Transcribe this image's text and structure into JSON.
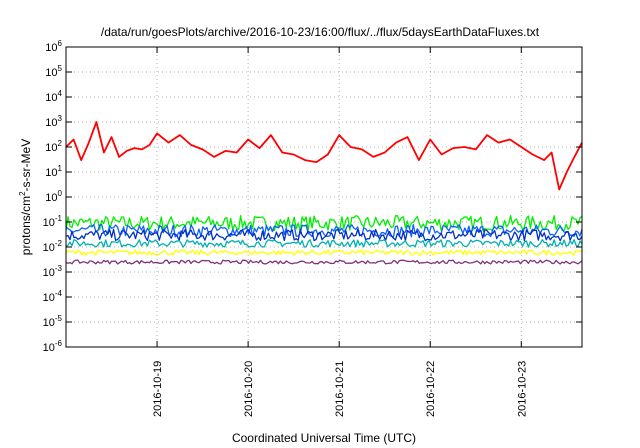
{
  "chart_data": {
    "type": "line",
    "title": "/data/run/goesPlots/archive/2016-10-23/16:00/flux/../flux/5daysEarthDataFluxes.txt",
    "xlabel": "Coordinated Universal Time (UTC)",
    "ylabel": {
      "prefix": "protons/cm",
      "sup": "2",
      "suffix": "-s-sr-MeV"
    },
    "yscale": "log",
    "ylim": [
      1e-06,
      1000000.0
    ],
    "yticks": [
      {
        "base": "10",
        "exp": "-6",
        "value": 1e-06
      },
      {
        "base": "10",
        "exp": "-5",
        "value": 1e-05
      },
      {
        "base": "10",
        "exp": "-4",
        "value": 0.0001
      },
      {
        "base": "10",
        "exp": "-3",
        "value": 0.001
      },
      {
        "base": "10",
        "exp": "-2",
        "value": 0.01
      },
      {
        "base": "10",
        "exp": "-1",
        "value": 0.1
      },
      {
        "base": "10",
        "exp": "0",
        "value": 1
      },
      {
        "base": "10",
        "exp": "1",
        "value": 10
      },
      {
        "base": "10",
        "exp": "2",
        "value": 100
      },
      {
        "base": "10",
        "exp": "3",
        "value": 1000
      },
      {
        "base": "10",
        "exp": "4",
        "value": 10000
      },
      {
        "base": "10",
        "exp": "5",
        "value": 100000
      },
      {
        "base": "10",
        "exp": "6",
        "value": 1000000
      }
    ],
    "xlim": [
      "2016-10-18 00:00",
      "2016-10-23 16:00"
    ],
    "xticks": [
      "2016-10-19",
      "2016-10-20",
      "2016-10-21",
      "2016-10-22",
      "2016-10-23"
    ],
    "grid": true,
    "series": [
      {
        "color": "#ff0000",
        "x": [
          "2016-10-18 00:00",
          "2016-10-18 02:00",
          "2016-10-18 04:00",
          "2016-10-18 06:00",
          "2016-10-18 08:00",
          "2016-10-18 10:00",
          "2016-10-18 12:00",
          "2016-10-18 14:00",
          "2016-10-18 16:00",
          "2016-10-18 18:00",
          "2016-10-18 20:00",
          "2016-10-18 22:00",
          "2016-10-19 00:00",
          "2016-10-19 03:00",
          "2016-10-19 06:00",
          "2016-10-19 09:00",
          "2016-10-19 12:00",
          "2016-10-19 15:00",
          "2016-10-19 18:00",
          "2016-10-19 21:00",
          "2016-10-20 00:00",
          "2016-10-20 03:00",
          "2016-10-20 06:00",
          "2016-10-20 09:00",
          "2016-10-20 12:00",
          "2016-10-20 15:00",
          "2016-10-20 18:00",
          "2016-10-20 21:00",
          "2016-10-21 00:00",
          "2016-10-21 03:00",
          "2016-10-21 06:00",
          "2016-10-21 09:00",
          "2016-10-21 12:00",
          "2016-10-21 15:00",
          "2016-10-21 18:00",
          "2016-10-21 21:00",
          "2016-10-22 00:00",
          "2016-10-22 03:00",
          "2016-10-22 06:00",
          "2016-10-22 09:00",
          "2016-10-22 12:00",
          "2016-10-22 15:00",
          "2016-10-22 18:00",
          "2016-10-22 21:00",
          "2016-10-23 00:00",
          "2016-10-23 03:00",
          "2016-10-23 06:00",
          "2016-10-23 08:00",
          "2016-10-23 10:00",
          "2016-10-23 12:00",
          "2016-10-23 14:00",
          "2016-10-23 16:00"
        ],
        "y": [
          100,
          200,
          30,
          150,
          1000,
          60,
          250,
          40,
          70,
          90,
          80,
          120,
          350,
          150,
          300,
          120,
          80,
          40,
          70,
          60,
          200,
          90,
          300,
          60,
          50,
          30,
          25,
          50,
          300,
          100,
          80,
          40,
          60,
          150,
          250,
          30,
          200,
          50,
          90,
          100,
          80,
          300,
          150,
          200,
          100,
          50,
          30,
          60,
          2,
          10,
          40,
          150
        ]
      },
      {
        "color": "#00ee00",
        "baseline": 0.09,
        "variation": 0.6
      },
      {
        "color": "#1060ff",
        "baseline": 0.045,
        "variation": 0.5
      },
      {
        "color": "#0030c0",
        "baseline": 0.03,
        "variation": 0.45
      },
      {
        "color": "#00b0b0",
        "baseline": 0.014,
        "variation": 0.3
      },
      {
        "color": "#ffff00",
        "baseline": 0.006,
        "variation": 0.2
      },
      {
        "color": "#803080",
        "baseline": 0.0025,
        "variation": 0.15
      }
    ]
  }
}
